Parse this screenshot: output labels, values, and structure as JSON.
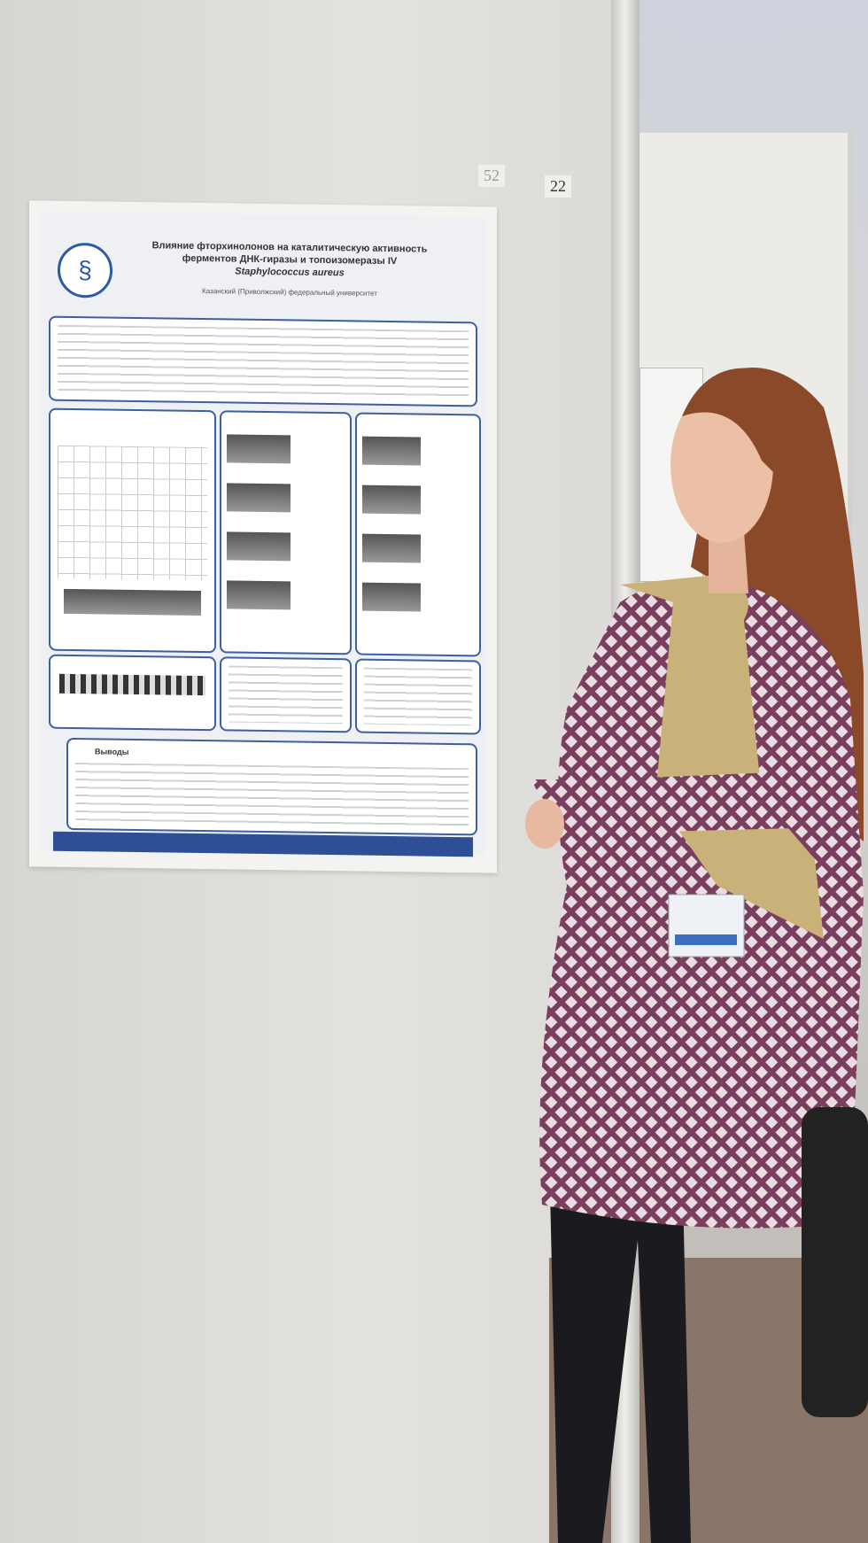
{
  "scene": {
    "wall_color": "#dcdad6",
    "poster_accent": "#2e4f96",
    "dress_color": "#7a3f5e",
    "scarf_color": "#c9b27a",
    "hair_color": "#8a4a2a"
  },
  "labels": {
    "board_number_left": "52",
    "board_number_right": "22"
  },
  "poster": {
    "title_line1": "Влияние фторхинолонов на каталитическую активность",
    "title_line2": "ферментов ДНК-гиразы и топоизомеразы IV",
    "title_line3": "Staphylococcus aureus",
    "affiliation": "Казанский (Приволжский) федеральный университет",
    "conclusions_heading": "Выводы"
  }
}
